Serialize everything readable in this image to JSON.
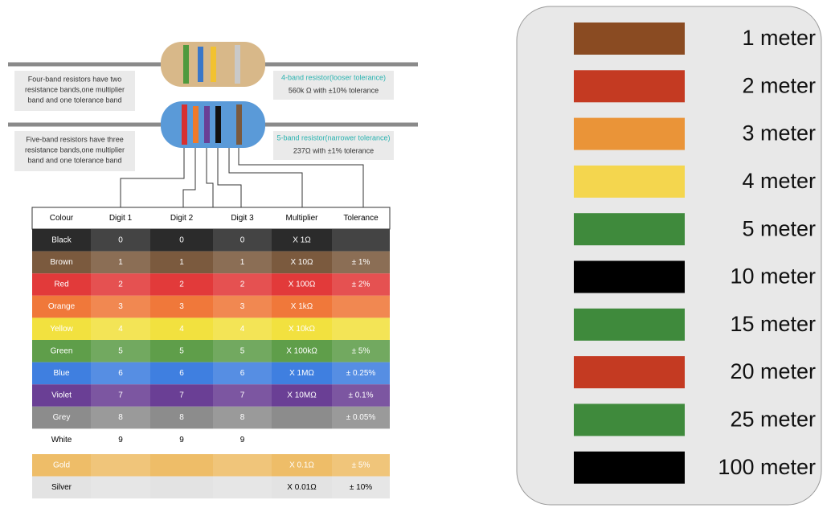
{
  "diagram": {
    "four_band_note": [
      "Four-band resistors have two",
      "resistance bands,one multiplier",
      "band and one tolerance band"
    ],
    "four_band_title": "4-band resistor(looser tolerance)",
    "four_band_value": "560k Ω with ±10% tolerance",
    "five_band_note": [
      "Five-band resistors have three",
      "resistance bands,one multiplier",
      "band and one tolerance band"
    ],
    "five_band_title": "5-band resistor(narrower tolerance)",
    "five_band_value": "237Ω with ±1% tolerance"
  },
  "table": {
    "header": [
      "Colour",
      "Digit 1",
      "Digit 2",
      "Digit 3",
      "Multiplier",
      "Tolerance"
    ],
    "rows": [
      {
        "color": "#2b2b2b",
        "text": "#ffffff",
        "cells": [
          "Black",
          "0",
          "0",
          "0",
          "X 1Ω",
          null
        ]
      },
      {
        "color": "#7b5a3e",
        "text": "#ffffff",
        "cells": [
          "Brown",
          "1",
          "1",
          "1",
          "X 10Ω",
          "± 1%"
        ]
      },
      {
        "color": "#e23a3a",
        "text": "#ffffff",
        "cells": [
          "Red",
          "2",
          "2",
          "2",
          "X 100Ω",
          "± 2%"
        ]
      },
      {
        "color": "#f0783a",
        "text": "#ffffff",
        "cells": [
          "Orange",
          "3",
          "3",
          "3",
          "X 1kΩ",
          null
        ]
      },
      {
        "color": "#f2e13f",
        "text": "#ffffff",
        "cells": [
          "Yellow",
          "4",
          "4",
          "4",
          "X 10kΩ",
          null
        ]
      },
      {
        "color": "#5f9e4a",
        "text": "#ffffff",
        "cells": [
          "Green",
          "5",
          "5",
          "5",
          "X 100kΩ",
          "± 5%"
        ]
      },
      {
        "color": "#3f7fe0",
        "text": "#ffffff",
        "cells": [
          "Blue",
          "6",
          "6",
          "6",
          "X 1MΩ",
          "± 0.25%"
        ]
      },
      {
        "color": "#6a3f95",
        "text": "#ffffff",
        "cells": [
          "Violet",
          "7",
          "7",
          "7",
          "X 10MΩ",
          "± 0.1%"
        ]
      },
      {
        "color": "#8c8c8c",
        "text": "#ffffff",
        "cells": [
          "Grey",
          "8",
          "8",
          "8",
          null,
          "± 0.05%"
        ]
      },
      {
        "color": "#ffffff",
        "text": "#000000",
        "cells": [
          "White",
          "9",
          "9",
          "9",
          null,
          null
        ]
      },
      {
        "color": "#eebd68",
        "text": "#ffffff",
        "cells": [
          "Gold",
          null,
          null,
          null,
          "X 0.1Ω",
          "± 5%"
        ]
      },
      {
        "color": "#e3e3e3",
        "text": "#000000",
        "cells": [
          "Silver",
          null,
          null,
          null,
          "X 0.01Ω",
          "± 10%"
        ]
      }
    ]
  },
  "legend": [
    {
      "color": "#8a4b22",
      "label": "1 meter"
    },
    {
      "color": "#c43a22",
      "label": "2 meter"
    },
    {
      "color": "#ea9438",
      "label": "3 meter"
    },
    {
      "color": "#f4d64e",
      "label": "4 meter"
    },
    {
      "color": "#3f8a3c",
      "label": "5 meter"
    },
    {
      "color": "#000000",
      "label": "10 meter"
    },
    {
      "color": "#3f8a3c",
      "label": "15 meter"
    },
    {
      "color": "#c43a22",
      "label": "20 meter"
    },
    {
      "color": "#3f8a3c",
      "label": "25 meter"
    },
    {
      "color": "#000000",
      "label": "100 meter"
    }
  ]
}
